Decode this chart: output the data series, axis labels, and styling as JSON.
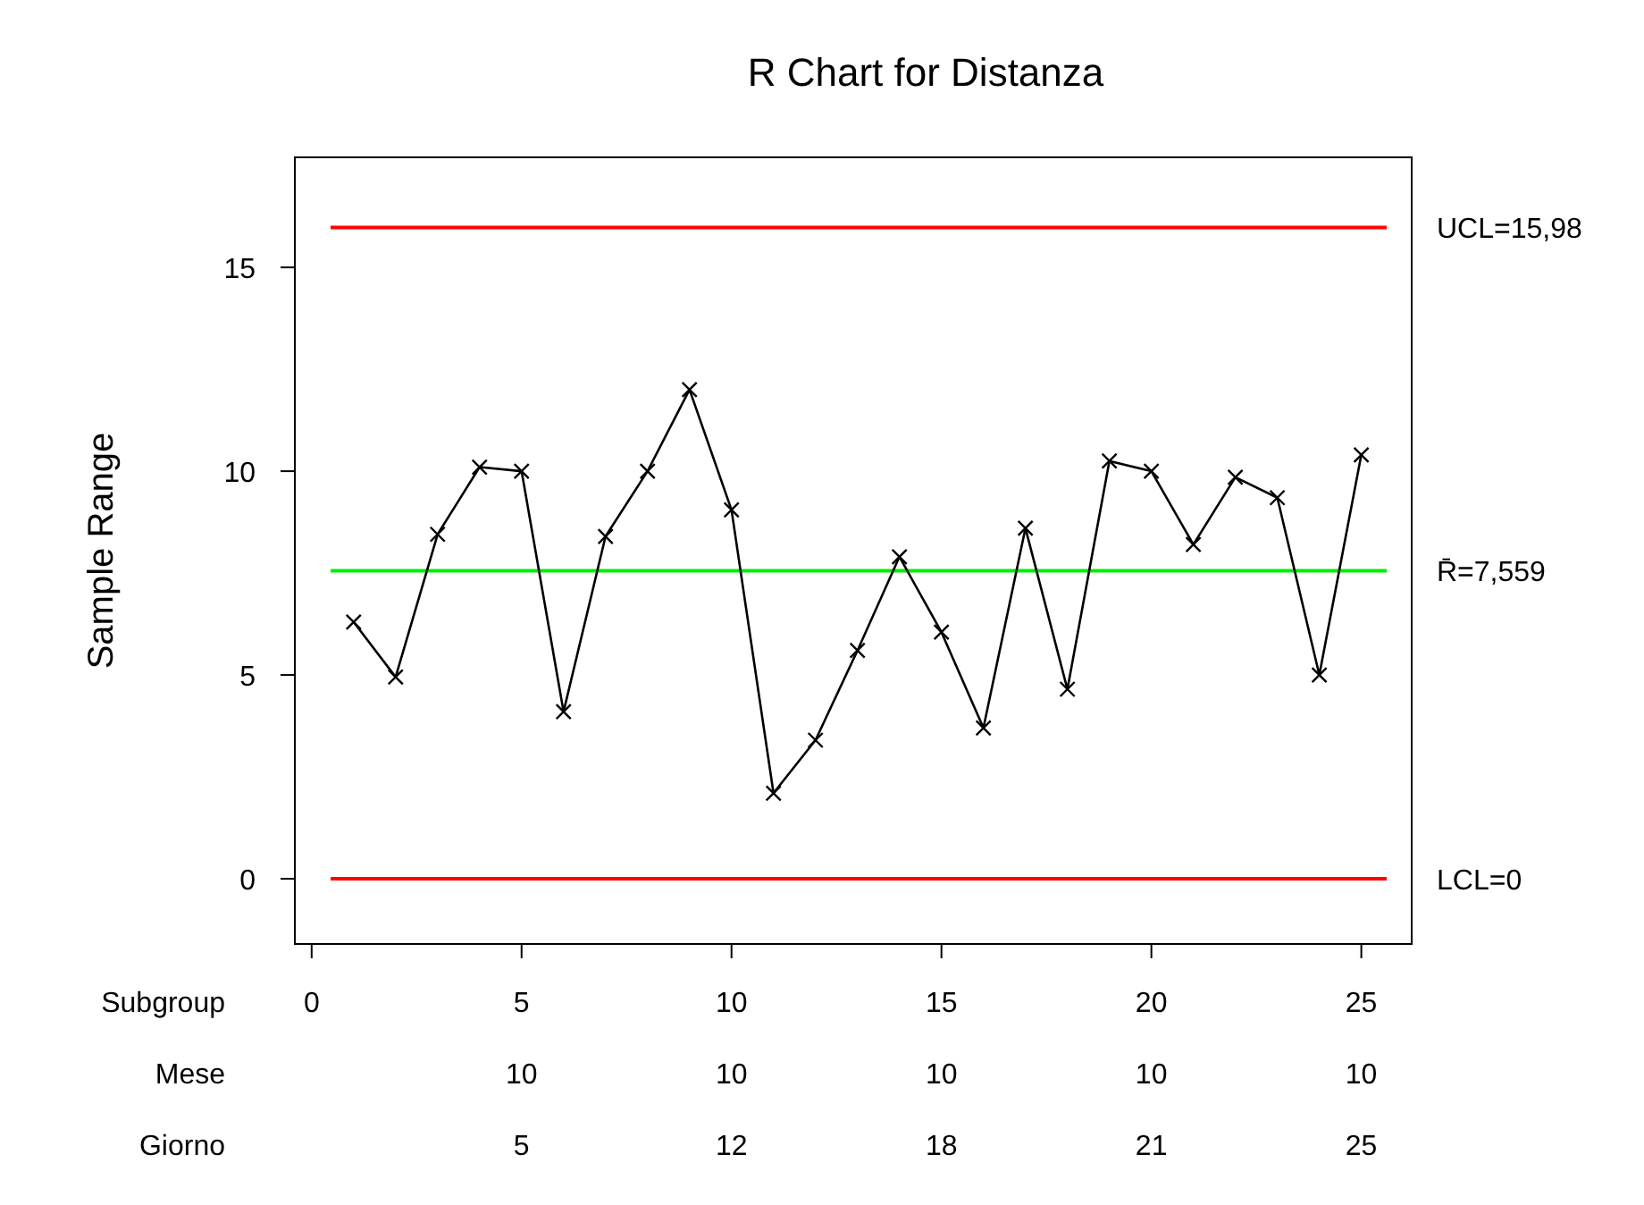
{
  "chart_data": {
    "type": "line",
    "title": "R Chart for Distanza",
    "ylabel": "Sample Range",
    "xlabel": "Subgroup",
    "x": [
      1,
      2,
      3,
      4,
      5,
      6,
      7,
      8,
      9,
      10,
      11,
      12,
      13,
      14,
      15,
      16,
      17,
      18,
      19,
      20,
      21,
      22,
      23,
      24,
      25
    ],
    "series": [
      {
        "color": "#000000",
        "values": [
          6.3,
          4.95,
          8.45,
          10.1,
          10.0,
          4.1,
          8.4,
          10.0,
          12.0,
          9.05,
          2.1,
          3.4,
          5.6,
          7.9,
          6.05,
          3.7,
          8.6,
          4.65,
          10.25,
          10.0,
          8.2,
          9.85,
          9.35,
          5.0,
          10.4
        ]
      }
    ],
    "marker": "cross",
    "line_style": "solid",
    "xlim": [
      -0.4,
      26.2
    ],
    "xticks": [
      0,
      5,
      10,
      15,
      20,
      25
    ],
    "ylim": [
      -1.6,
      17.7
    ],
    "yticks": [
      0,
      5,
      10,
      15
    ],
    "annotations": [
      "Mese",
      "10",
      "10",
      "10",
      "10",
      "10",
      "Giorno",
      "5",
      "12",
      "18",
      "21",
      "25"
    ],
    "ref_lines": [
      {
        "axis": "y",
        "value": 15.98,
        "label": "UCL=15,98",
        "color": "#ff0000"
      },
      {
        "axis": "y",
        "value": 7.559,
        "label": "R̄=7,559",
        "color": "#00ee00"
      },
      {
        "axis": "y",
        "value": 0,
        "label": "LCL=0",
        "color": "#ff0000"
      }
    ]
  }
}
